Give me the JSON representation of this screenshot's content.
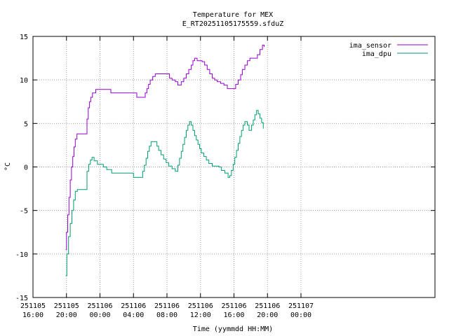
{
  "chart_data": {
    "type": "line",
    "title": "Temperature for MEX",
    "subtitle": "E_RT20251105175559.sfduZ",
    "xlabel": "Time (yymmdd HH:MM)",
    "ylabel": "°C",
    "ylim": [
      -15,
      15
    ],
    "yticks": [
      -15,
      -10,
      -5,
      0,
      5,
      10,
      15
    ],
    "xlim_hours": [
      16,
      64
    ],
    "xticks": [
      {
        "t": 16,
        "date": "251105",
        "time": "16:00"
      },
      {
        "t": 20,
        "date": "251105",
        "time": "20:00"
      },
      {
        "t": 24,
        "date": "251106",
        "time": "00:00"
      },
      {
        "t": 28,
        "date": "251106",
        "time": "04:00"
      },
      {
        "t": 32,
        "date": "251106",
        "time": "08:00"
      },
      {
        "t": 36,
        "date": "251106",
        "time": "12:00"
      },
      {
        "t": 40,
        "date": "251106",
        "time": "16:00"
      },
      {
        "t": 44,
        "date": "251106",
        "time": "20:00"
      },
      {
        "t": 48,
        "date": "251107",
        "time": "00:00"
      }
    ],
    "grid": true,
    "legend_position": "top-right",
    "series": [
      {
        "name": "ima_sensor",
        "color": "#9400d3",
        "points": [
          [
            19.9,
            -9.5
          ],
          [
            20.0,
            -7.5
          ],
          [
            20.15,
            -5.5
          ],
          [
            20.3,
            -3.5
          ],
          [
            20.45,
            -1.5
          ],
          [
            20.6,
            0.0
          ],
          [
            20.75,
            1.2
          ],
          [
            20.9,
            2.3
          ],
          [
            21.05,
            3.2
          ],
          [
            21.25,
            3.8
          ],
          [
            22.35,
            3.8
          ],
          [
            22.45,
            5.5
          ],
          [
            22.6,
            6.8
          ],
          [
            22.75,
            7.5
          ],
          [
            22.9,
            8.0
          ],
          [
            23.1,
            8.5
          ],
          [
            23.5,
            8.9
          ],
          [
            25.2,
            8.9
          ],
          [
            25.3,
            8.5
          ],
          [
            28.3,
            8.5
          ],
          [
            28.4,
            8.0
          ],
          [
            29.2,
            8.0
          ],
          [
            29.4,
            8.5
          ],
          [
            29.6,
            9.0
          ],
          [
            29.8,
            9.5
          ],
          [
            30.0,
            10.0
          ],
          [
            30.3,
            10.4
          ],
          [
            30.6,
            10.7
          ],
          [
            32.0,
            10.7
          ],
          [
            32.3,
            10.2
          ],
          [
            32.6,
            10.0
          ],
          [
            33.0,
            9.8
          ],
          [
            33.3,
            9.4
          ],
          [
            33.7,
            9.8
          ],
          [
            34.0,
            10.2
          ],
          [
            34.3,
            10.7
          ],
          [
            34.6,
            11.2
          ],
          [
            34.9,
            11.7
          ],
          [
            35.1,
            12.2
          ],
          [
            35.3,
            12.5
          ],
          [
            35.6,
            12.2
          ],
          [
            36.2,
            12.1
          ],
          [
            36.5,
            11.7
          ],
          [
            36.8,
            11.2
          ],
          [
            37.1,
            10.7
          ],
          [
            37.4,
            10.2
          ],
          [
            37.7,
            10.0
          ],
          [
            38.0,
            9.8
          ],
          [
            38.4,
            9.6
          ],
          [
            38.8,
            9.4
          ],
          [
            39.2,
            9.0
          ],
          [
            39.9,
            9.0
          ],
          [
            40.2,
            9.5
          ],
          [
            40.5,
            10.0
          ],
          [
            40.8,
            10.6
          ],
          [
            41.0,
            11.2
          ],
          [
            41.3,
            11.7
          ],
          [
            41.6,
            12.2
          ],
          [
            41.9,
            12.5
          ],
          [
            42.5,
            12.5
          ],
          [
            42.8,
            12.9
          ],
          [
            43.1,
            13.5
          ],
          [
            43.4,
            14.0
          ],
          [
            43.6,
            13.8
          ]
        ]
      },
      {
        "name": "ima_dpu",
        "color": "#009e73",
        "points": [
          [
            19.9,
            -12.5
          ],
          [
            20.05,
            -10.0
          ],
          [
            20.25,
            -8.0
          ],
          [
            20.45,
            -6.5
          ],
          [
            20.65,
            -5.0
          ],
          [
            20.85,
            -3.8
          ],
          [
            21.05,
            -2.8
          ],
          [
            21.3,
            -2.6
          ],
          [
            22.35,
            -2.6
          ],
          [
            22.45,
            -0.5
          ],
          [
            22.65,
            0.3
          ],
          [
            22.85,
            0.8
          ],
          [
            23.05,
            1.1
          ],
          [
            23.3,
            0.7
          ],
          [
            23.7,
            0.3
          ],
          [
            24.4,
            0.0
          ],
          [
            24.8,
            -0.3
          ],
          [
            25.4,
            -0.7
          ],
          [
            27.8,
            -0.7
          ],
          [
            28.0,
            -1.2
          ],
          [
            28.9,
            -1.2
          ],
          [
            29.1,
            -0.5
          ],
          [
            29.3,
            0.2
          ],
          [
            29.5,
            1.0
          ],
          [
            29.7,
            1.8
          ],
          [
            29.9,
            2.4
          ],
          [
            30.1,
            2.9
          ],
          [
            30.6,
            2.9
          ],
          [
            30.8,
            2.4
          ],
          [
            31.0,
            1.9
          ],
          [
            31.3,
            1.4
          ],
          [
            31.6,
            0.9
          ],
          [
            31.9,
            0.5
          ],
          [
            32.2,
            0.1
          ],
          [
            32.6,
            -0.2
          ],
          [
            33.0,
            -0.5
          ],
          [
            33.3,
            0.2
          ],
          [
            33.5,
            1.0
          ],
          [
            33.7,
            1.8
          ],
          [
            33.9,
            2.6
          ],
          [
            34.1,
            3.4
          ],
          [
            34.3,
            4.2
          ],
          [
            34.5,
            4.8
          ],
          [
            34.7,
            5.2
          ],
          [
            34.9,
            4.8
          ],
          [
            35.1,
            4.2
          ],
          [
            35.3,
            3.6
          ],
          [
            35.5,
            3.1
          ],
          [
            35.7,
            2.6
          ],
          [
            35.9,
            2.1
          ],
          [
            36.1,
            1.6
          ],
          [
            36.4,
            1.2
          ],
          [
            36.7,
            0.8
          ],
          [
            37.0,
            0.4
          ],
          [
            37.4,
            0.1
          ],
          [
            38.2,
            0.0
          ],
          [
            38.5,
            -0.4
          ],
          [
            38.9,
            -0.7
          ],
          [
            39.3,
            -1.2
          ],
          [
            39.5,
            -1.0
          ],
          [
            39.7,
            -0.4
          ],
          [
            39.9,
            0.3
          ],
          [
            40.1,
            1.1
          ],
          [
            40.3,
            1.9
          ],
          [
            40.5,
            2.7
          ],
          [
            40.7,
            3.5
          ],
          [
            40.9,
            4.2
          ],
          [
            41.1,
            4.8
          ],
          [
            41.3,
            5.2
          ],
          [
            41.6,
            4.8
          ],
          [
            41.8,
            4.2
          ],
          [
            42.1,
            4.8
          ],
          [
            42.3,
            5.4
          ],
          [
            42.5,
            6.0
          ],
          [
            42.7,
            6.5
          ],
          [
            42.9,
            6.1
          ],
          [
            43.1,
            5.6
          ],
          [
            43.3,
            5.1
          ],
          [
            43.5,
            4.4
          ]
        ]
      }
    ]
  }
}
